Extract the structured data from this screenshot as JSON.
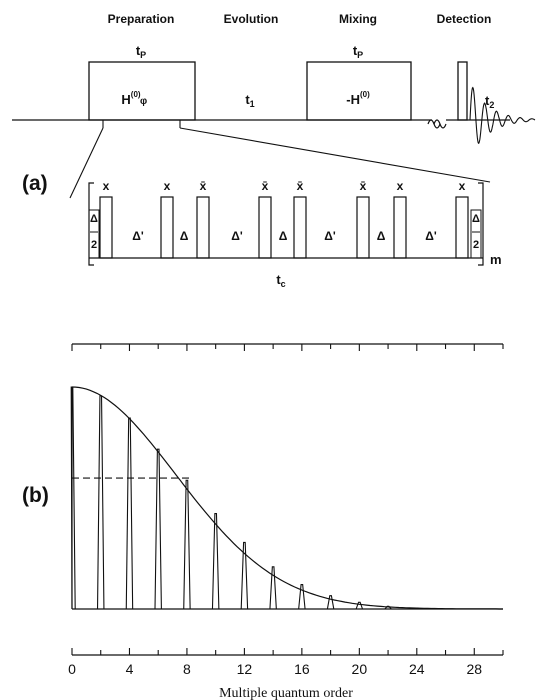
{
  "panel_a": {
    "label": "(a)",
    "phases": [
      "Preparation",
      "Evolution",
      "Mixing",
      "Detection"
    ],
    "prep_time": "t",
    "prep_time_sub": "P",
    "prep_hamiltonian": "H",
    "prep_hamiltonian_sup": "(0)",
    "prep_hamiltonian_sub": "φ",
    "evolution_time": "t",
    "evolution_time_sub": "1",
    "mixing_time": "t",
    "mixing_time_sub": "P",
    "mixing_hamiltonian": "-H",
    "mixing_hamiltonian_sup": "(0)",
    "detection_time": "t",
    "detection_time_sub": "2",
    "break_mark": "≈",
    "cycle_time": "t",
    "cycle_time_sub": "c",
    "repeat": "m",
    "half_delay_num": "Δ",
    "half_delay_den": "2",
    "pulse_phases": [
      "x",
      "x",
      "x̄",
      "x̄",
      "x̄",
      "x̄",
      "x",
      "x"
    ],
    "delays": [
      "Δ'",
      "Δ",
      "Δ'",
      "Δ",
      "Δ'",
      "Δ",
      "Δ'"
    ]
  },
  "panel_b": {
    "label": "(b)",
    "xlabel": "Multiple quantum order",
    "xticks": [
      "0",
      "4",
      "8",
      "12",
      "16",
      "20",
      "24",
      "28"
    ]
  },
  "chart_data": {
    "type": "bar",
    "xlabel": "Multiple quantum order",
    "xlim": [
      0,
      30
    ],
    "ylim": [
      0,
      1
    ],
    "x": [
      0,
      2,
      4,
      6,
      8,
      10,
      12,
      14,
      16,
      18,
      20,
      22,
      24,
      26,
      28
    ],
    "values": [
      1.0,
      0.96,
      0.86,
      0.72,
      0.58,
      0.43,
      0.3,
      0.19,
      0.11,
      0.06,
      0.03,
      0.012,
      0.004,
      0.0,
      0.0
    ],
    "envelope": "gaussian",
    "half_height_line": 0.59,
    "grid": false,
    "legend": "none"
  }
}
